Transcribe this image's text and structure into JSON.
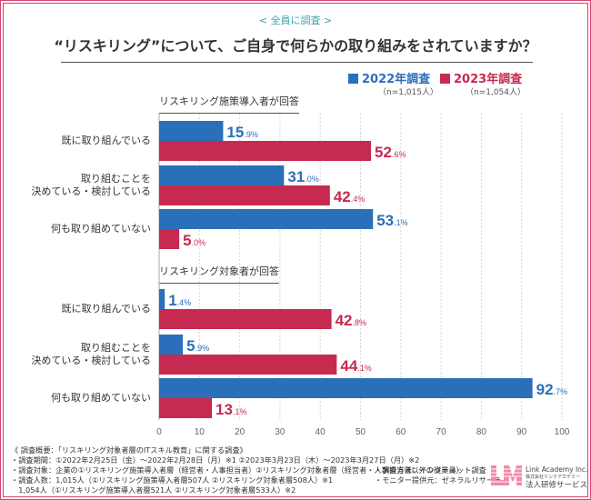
{
  "header": {
    "subtitle": "< 全員に調査 >",
    "title": "“リスキリング”について、ご自身で何らかの取り組みをされていますか？"
  },
  "legend": [
    {
      "label": "2022年調査",
      "n": "（n=1,015人）",
      "color": "#2a6fb9"
    },
    {
      "label": "2023年調査",
      "n": "（n=1,054人）",
      "color": "#c72a50"
    }
  ],
  "chart_data": {
    "type": "bar",
    "orientation": "horizontal",
    "xlim": [
      0,
      100
    ],
    "xticks": [
      "0",
      "10",
      "20",
      "30",
      "40",
      "50",
      "60",
      "70",
      "80",
      "90",
      "100"
    ],
    "grid": "vertical dotted",
    "legend_position": "top-right",
    "series_names": [
      "2022年調査",
      "2023年調査"
    ],
    "groups": [
      {
        "label": "リスキリング施策導入者が回答",
        "categories": [
          {
            "label": [
              "既に取り組んでいる"
            ],
            "values": [
              15.9,
              52.6
            ]
          },
          {
            "label": [
              "取り組むことを",
              "決めている・検討している"
            ],
            "values": [
              31.0,
              42.4
            ]
          },
          {
            "label": [
              "何も取り組めていない"
            ],
            "values": [
              53.1,
              5.0
            ]
          }
        ]
      },
      {
        "label": "リスキリング対象者が回答",
        "categories": [
          {
            "label": [
              "既に取り組んでいる"
            ],
            "values": [
              1.4,
              42.8
            ]
          },
          {
            "label": [
              "取り組むことを",
              "決めている・検討している"
            ],
            "values": [
              5.9,
              44.1
            ]
          },
          {
            "label": [
              "何も取り組めていない"
            ],
            "values": [
              92.7,
              13.1
            ]
          }
        ]
      }
    ]
  },
  "notes": {
    "lines": [
      "《 調査概要：「リスキリング対象者層のITスキル教育」に関する調査》",
      "・調査期間：①2022年2月25日（金）～2022年2月28日（月）※1 ②2023年3月23日（木）～2023年3月27日（月）※2",
      "・調査対象：企業の①リスキリング施策導入者層（経営者・人事担当者）②リスキリング対象者層（経営者・人事担当者以外の従業員）",
      "・調査人数：1,015人（①リスキリング施策導入者層507人 ②リスキリング対象者層508人）※1",
      "　1,054人（①リスキリング施策導入者層521人 ②リスキリング対象者層533人）※2"
    ],
    "right": [
      "・調査方法：インターネット調査",
      "・モニター提供元：ゼネラルリサーチ"
    ]
  },
  "logo": {
    "mark": "LM",
    "company": "Link Academy Inc.",
    "kana": "株式会社リンクアカデミー",
    "service": "法人研修サービス"
  }
}
